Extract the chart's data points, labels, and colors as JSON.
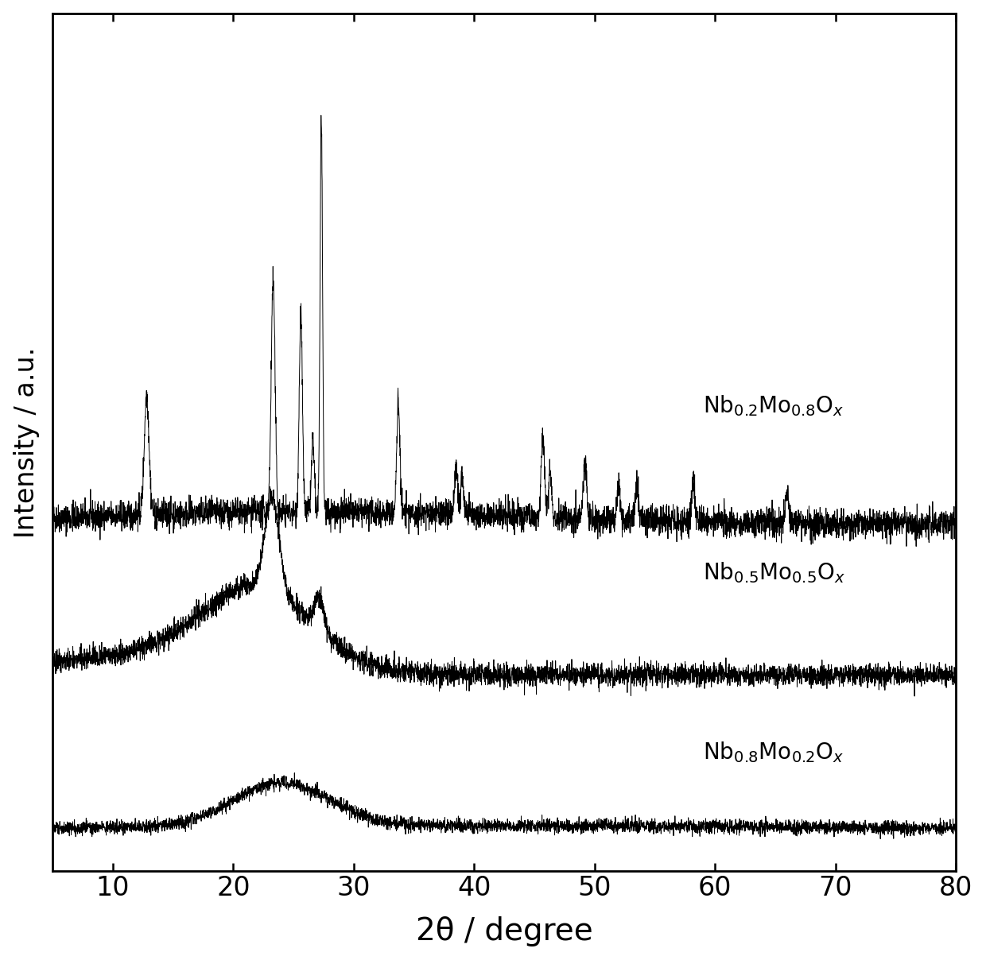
{
  "xlabel": "2θ / degree",
  "ylabel": "Intensity / a.u.",
  "xlim": [
    5,
    80
  ],
  "xticks": [
    10,
    20,
    30,
    40,
    50,
    60,
    70,
    80
  ],
  "background_color": "#ffffff",
  "line_color": "#000000",
  "label1": "Nb$_{0.2}$Mo$_{0.8}$O$_x$",
  "label2": "Nb$_{0.5}$Mo$_{0.5}$O$_x$",
  "label3": "Nb$_{0.8}$Mo$_{0.2}$O$_x$",
  "figsize": [
    12.4,
    12.08
  ],
  "dpi": 100
}
